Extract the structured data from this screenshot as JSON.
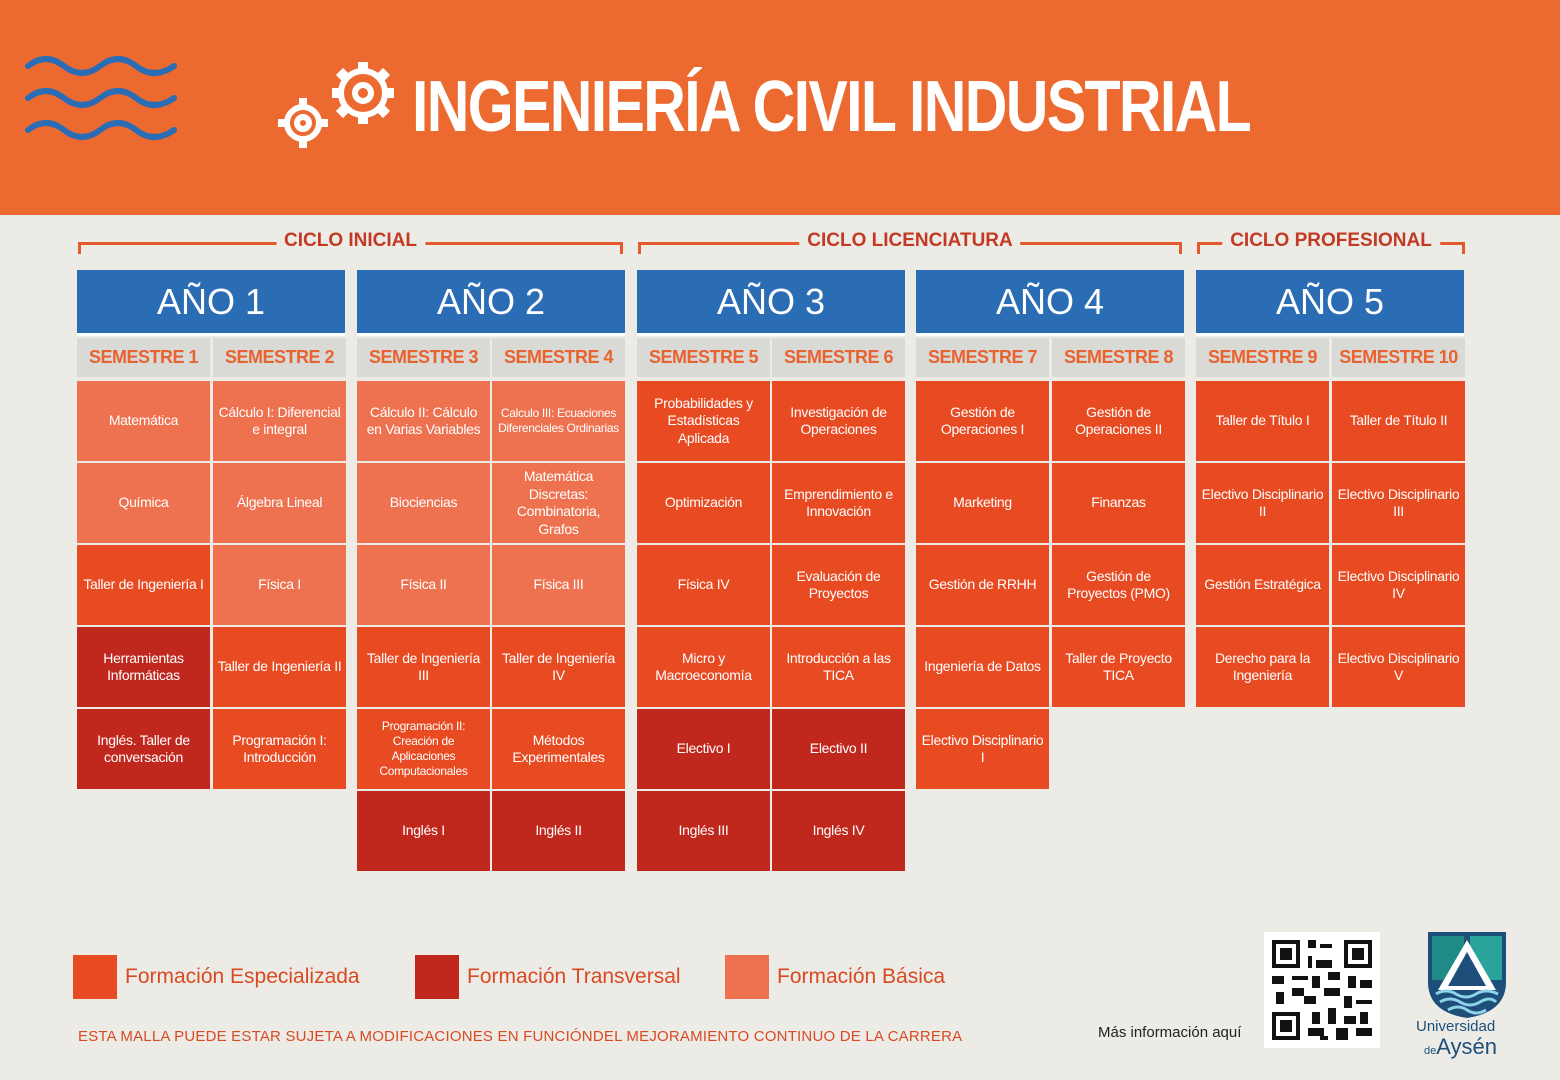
{
  "header": {
    "title": "INGENIERÍA CIVIL INDUSTRIAL"
  },
  "colors": {
    "header_bg": "#ec6a2f",
    "year_bg": "#2b6db5",
    "semester_bg": "#d9d9d6",
    "especializada": "#e84a22",
    "transversal": "#c0281e",
    "basica": "#ee7250"
  },
  "cycles": [
    {
      "label": "CICLO INICIAL"
    },
    {
      "label": "CICLO LICENCIATURA"
    },
    {
      "label": "CICLO PROFESIONAL"
    }
  ],
  "years": [
    {
      "label": "AÑO 1"
    },
    {
      "label": "AÑO 2"
    },
    {
      "label": "AÑO 3"
    },
    {
      "label": "AÑO 4"
    },
    {
      "label": "AÑO 5"
    }
  ],
  "semesters": [
    {
      "label": "SEMESTRE 1",
      "courses": [
        {
          "name": "Matemática",
          "type": "basica"
        },
        {
          "name": "Química",
          "type": "basica"
        },
        {
          "name": "Taller de Ingeniería I",
          "type": "especializada"
        },
        {
          "name": "Herramientas Informáticas",
          "type": "transversal"
        },
        {
          "name": "Inglés. Taller de conversación",
          "type": "transversal"
        }
      ]
    },
    {
      "label": "SEMESTRE 2",
      "courses": [
        {
          "name": "Cálculo I: Diferencial e integral",
          "type": "basica"
        },
        {
          "name": "Álgebra Lineal",
          "type": "basica"
        },
        {
          "name": "Física I",
          "type": "basica"
        },
        {
          "name": "Taller de Ingeniería II",
          "type": "especializada"
        },
        {
          "name": "Programación I: Introducción",
          "type": "especializada"
        }
      ]
    },
    {
      "label": "SEMESTRE 3",
      "courses": [
        {
          "name": "Cálculo II: Cálculo en Varias Variables",
          "type": "basica"
        },
        {
          "name": "Biociencias",
          "type": "basica"
        },
        {
          "name": "Física II",
          "type": "basica"
        },
        {
          "name": "Taller de Ingeniería III",
          "type": "especializada"
        },
        {
          "name": "Programación II: Creación de Aplicaciones Computacionales",
          "type": "especializada"
        },
        {
          "name": "Inglés I",
          "type": "transversal"
        }
      ]
    },
    {
      "label": "SEMESTRE 4",
      "courses": [
        {
          "name": "Calculo III: Ecuaciones Diferenciales Ordinarias",
          "type": "basica"
        },
        {
          "name": "Matemática Discretas: Combinatoria, Grafos",
          "type": "basica"
        },
        {
          "name": "Física III",
          "type": "basica"
        },
        {
          "name": "Taller de Ingeniería IV",
          "type": "especializada"
        },
        {
          "name": "Métodos Experimentales",
          "type": "especializada"
        },
        {
          "name": "Inglés II",
          "type": "transversal"
        }
      ]
    },
    {
      "label": "SEMESTRE 5",
      "courses": [
        {
          "name": "Probabilidades y Estadísticas Aplicada",
          "type": "especializada"
        },
        {
          "name": "Optimización",
          "type": "especializada"
        },
        {
          "name": "Física IV",
          "type": "especializada"
        },
        {
          "name": "Micro y Macroeconomía",
          "type": "especializada"
        },
        {
          "name": "Electivo I",
          "type": "transversal"
        },
        {
          "name": "Inglés III",
          "type": "transversal"
        }
      ]
    },
    {
      "label": "SEMESTRE 6",
      "courses": [
        {
          "name": "Investigación de Operaciones",
          "type": "especializada"
        },
        {
          "name": "Emprendimiento e Innovación",
          "type": "especializada"
        },
        {
          "name": "Evaluación de Proyectos",
          "type": "especializada"
        },
        {
          "name": "Introducción a las TICA",
          "type": "especializada"
        },
        {
          "name": "Electivo II",
          "type": "transversal"
        },
        {
          "name": "Inglés IV",
          "type": "transversal"
        }
      ]
    },
    {
      "label": "SEMESTRE 7",
      "courses": [
        {
          "name": "Gestión de Operaciones I",
          "type": "especializada"
        },
        {
          "name": "Marketing",
          "type": "especializada"
        },
        {
          "name": "Gestión de RRHH",
          "type": "especializada"
        },
        {
          "name": "Ingeniería de Datos",
          "type": "especializada"
        },
        {
          "name": "Electivo Disciplinario I",
          "type": "especializada"
        }
      ]
    },
    {
      "label": "SEMESTRE 8",
      "courses": [
        {
          "name": "Gestión de Operaciones II",
          "type": "especializada"
        },
        {
          "name": "Finanzas",
          "type": "especializada"
        },
        {
          "name": "Gestión de Proyectos (PMO)",
          "type": "especializada"
        },
        {
          "name": "Taller de Proyecto TICA",
          "type": "especializada"
        }
      ]
    },
    {
      "label": "SEMESTRE 9",
      "courses": [
        {
          "name": "Taller de Título I",
          "type": "especializada"
        },
        {
          "name": "Electivo Disciplinario II",
          "type": "especializada"
        },
        {
          "name": "Gestión Estratégica",
          "type": "especializada"
        },
        {
          "name": "Derecho para la Ingeniería",
          "type": "especializada"
        }
      ]
    },
    {
      "label": "SEMESTRE 10",
      "courses": [
        {
          "name": "Taller de Título II",
          "type": "especializada"
        },
        {
          "name": "Electivo Disciplinario III",
          "type": "especializada"
        },
        {
          "name": "Electivo Disciplinario IV",
          "type": "especializada"
        },
        {
          "name": "Electivo Disciplinario V",
          "type": "especializada"
        }
      ]
    }
  ],
  "legend": [
    {
      "label": "Formación Especializada",
      "type": "especializada"
    },
    {
      "label": "Formación Transversal",
      "type": "transversal"
    },
    {
      "label": "Formación Básica",
      "type": "basica"
    }
  ],
  "footer": {
    "note": "ESTA MALLA PUEDE ESTAR SUJETA A MODIFICACIONES EN FUNCIÓNDEL MEJORAMIENTO CONTINUO DE LA CARRERA",
    "more_info": "Más información aquí",
    "logo_line1": "Universidad",
    "logo_de": "de",
    "logo_line2": "Aysén"
  }
}
